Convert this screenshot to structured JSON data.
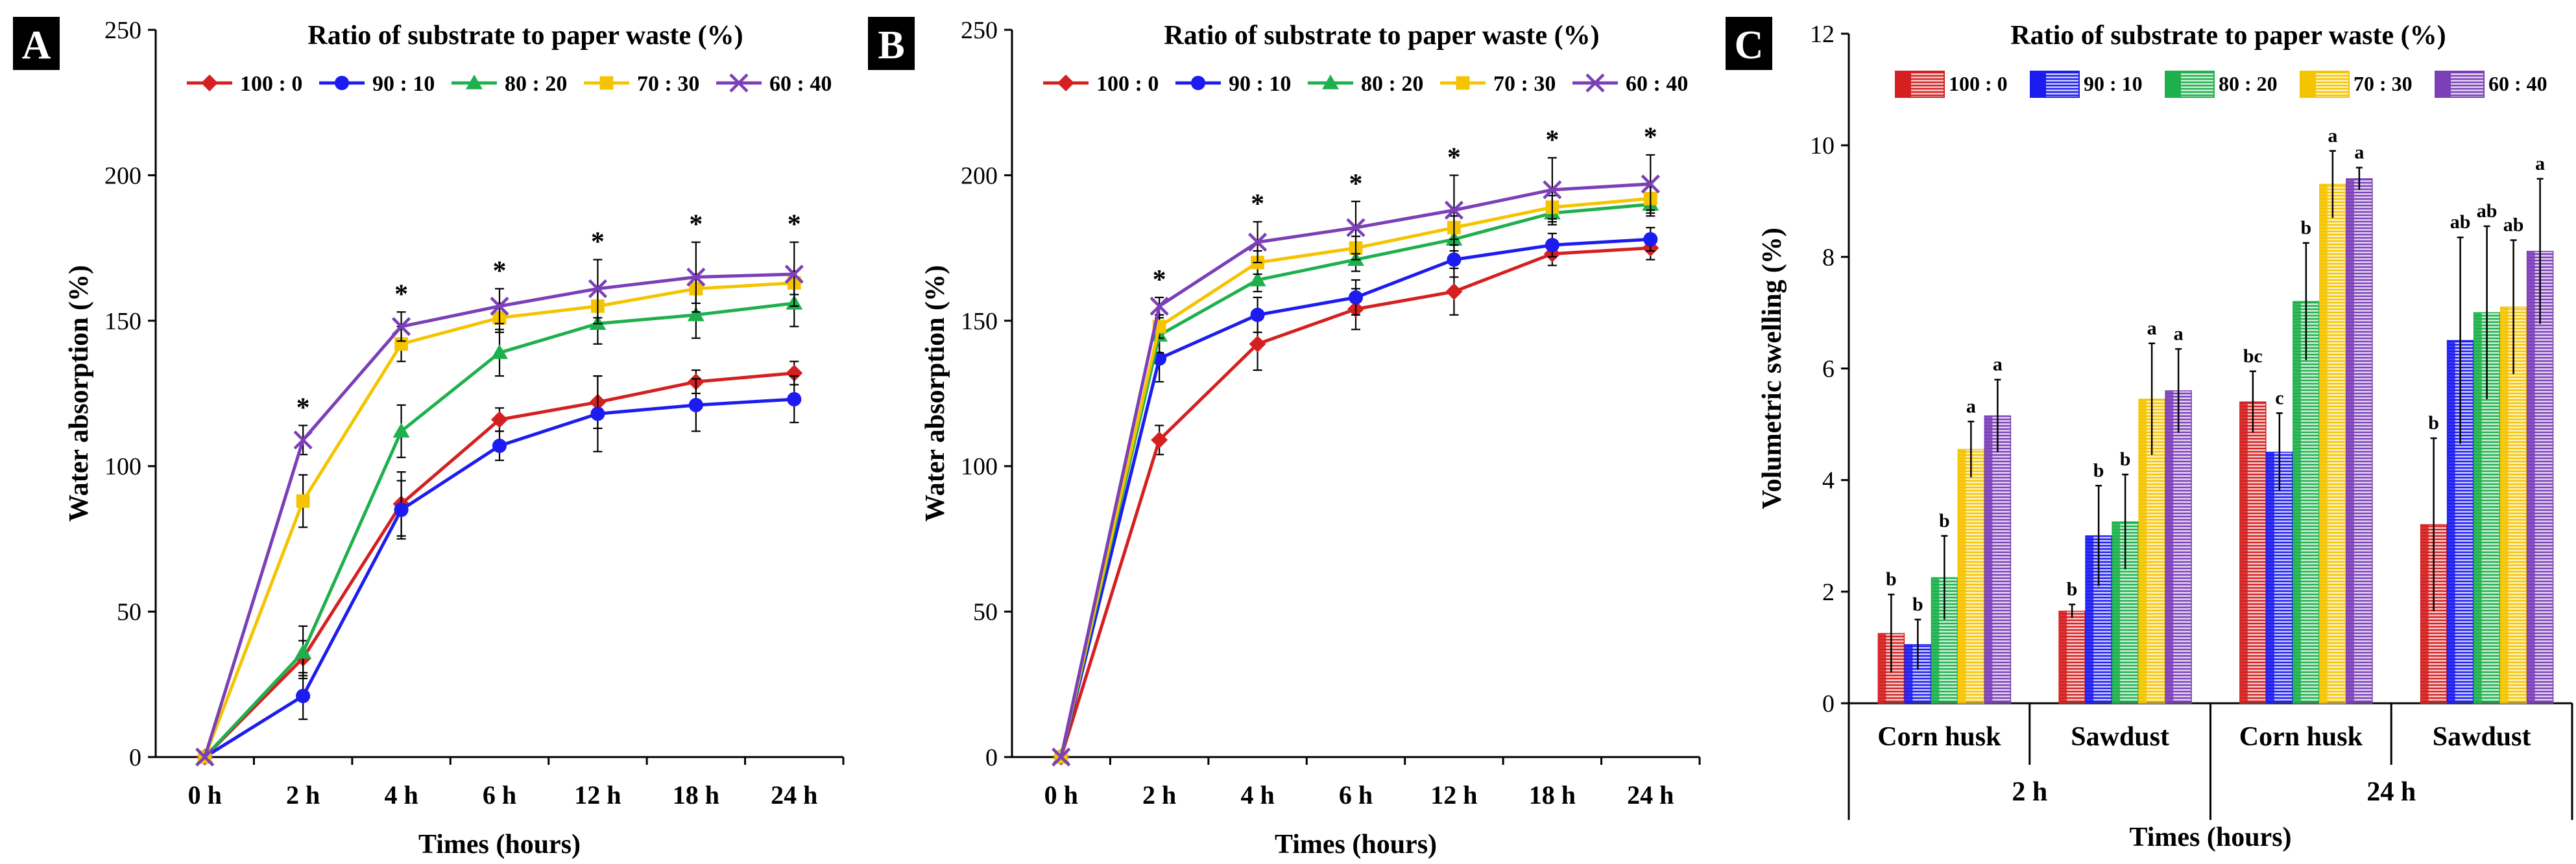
{
  "legend_title": "Ratio of substrate to paper waste (%)",
  "colors": {
    "100 : 0": "#d42020",
    "90 : 10": "#1c1cf0",
    "80 : 20": "#1fb04e",
    "70 : 30": "#f5c400",
    "60 : 40": "#7b3fb8",
    "text": "#000000"
  },
  "chart_data": [
    {
      "panel": "A",
      "type": "line",
      "title": "Ratio of substrate to paper waste (%)",
      "xlabel": "Times (hours)",
      "ylabel": "Water absorption (%)",
      "categories": [
        "0 h",
        "2 h",
        "4 h",
        "6 h",
        "12 h",
        "18 h",
        "24 h"
      ],
      "ylim": [
        0,
        250
      ],
      "yticks": [
        0,
        50,
        100,
        150,
        200,
        250
      ],
      "legend": "top",
      "series": [
        {
          "name": "100 : 0",
          "marker": "diamond",
          "values": [
            0,
            34,
            87,
            116,
            122,
            129,
            132
          ],
          "err": [
            0,
            6,
            11,
            4,
            9,
            4,
            4
          ]
        },
        {
          "name": "90 : 10",
          "marker": "circle",
          "values": [
            0,
            21,
            85,
            107,
            118,
            121,
            123
          ],
          "err": [
            0,
            8,
            10,
            5,
            13,
            9,
            8
          ]
        },
        {
          "name": "80 : 20",
          "marker": "triangle",
          "values": [
            0,
            36,
            112,
            139,
            149,
            152,
            156
          ],
          "err": [
            0,
            9,
            9,
            8,
            7,
            8,
            8
          ]
        },
        {
          "name": "70 : 30",
          "marker": "square",
          "values": [
            0,
            88,
            142,
            151,
            155,
            161,
            163
          ],
          "err": [
            0,
            9,
            6,
            5,
            6,
            5,
            4
          ]
        },
        {
          "name": "60 : 40",
          "marker": "x",
          "values": [
            0,
            109,
            148,
            155,
            161,
            165,
            166
          ],
          "err": [
            0,
            5,
            5,
            6,
            10,
            12,
            11
          ]
        }
      ],
      "significance": [
        "",
        "*",
        "*",
        "*",
        "*",
        "*",
        "*"
      ]
    },
    {
      "panel": "B",
      "type": "line",
      "title": "Ratio of substrate to paper waste (%)",
      "xlabel": "Times (hours)",
      "ylabel": "Water absorption (%)",
      "categories": [
        "0 h",
        "2 h",
        "4 h",
        "6 h",
        "12 h",
        "18 h",
        "24 h"
      ],
      "ylim": [
        0,
        250
      ],
      "yticks": [
        0,
        50,
        100,
        150,
        200,
        250
      ],
      "legend": "top",
      "series": [
        {
          "name": "100 : 0",
          "marker": "diamond",
          "values": [
            0,
            109,
            142,
            154,
            160,
            173,
            175
          ],
          "err": [
            0,
            5,
            9,
            7,
            8,
            4,
            4
          ]
        },
        {
          "name": "90 : 10",
          "marker": "circle",
          "values": [
            0,
            137,
            152,
            158,
            171,
            176,
            178
          ],
          "err": [
            0,
            8,
            6,
            6,
            6,
            4,
            4
          ]
        },
        {
          "name": "80 : 20",
          "marker": "triangle",
          "values": [
            0,
            145,
            164,
            171,
            178,
            187,
            190
          ],
          "err": [
            0,
            6,
            4,
            4,
            4,
            4,
            4
          ]
        },
        {
          "name": "70 : 30",
          "marker": "square",
          "values": [
            0,
            148,
            170,
            175,
            182,
            189,
            192
          ],
          "err": [
            0,
            4,
            4,
            4,
            4,
            4,
            4
          ]
        },
        {
          "name": "60 : 40",
          "marker": "x",
          "values": [
            0,
            155,
            177,
            182,
            188,
            195,
            197
          ],
          "err": [
            0,
            3,
            7,
            9,
            12,
            11,
            10
          ]
        }
      ],
      "significance": [
        "",
        "*",
        "*",
        "*",
        "*",
        "*",
        "*"
      ]
    },
    {
      "panel": "C",
      "type": "bar",
      "title": "Ratio of substrate to paper waste (%)",
      "xlabel": "Times (hours)",
      "ylabel": "Volumetric swelling (%)",
      "ylim": [
        0,
        12
      ],
      "yticks": [
        0,
        2,
        4,
        6,
        8,
        10,
        12
      ],
      "legend": "top",
      "groups": [
        {
          "time": "2 h",
          "material": "Corn husk",
          "values": [
            1.25,
            1.05,
            2.25,
            4.55,
            5.15
          ],
          "err": [
            0.7,
            0.45,
            0.75,
            0.5,
            0.65
          ],
          "letters": [
            "b",
            "b",
            "b",
            "a",
            "a"
          ]
        },
        {
          "time": "2 h",
          "material": "Sawdust",
          "values": [
            1.65,
            3.0,
            3.25,
            5.45,
            5.6
          ],
          "err": [
            0.12,
            0.9,
            0.85,
            1.0,
            0.75
          ],
          "letters": [
            "b",
            "b",
            "b",
            "a",
            "a"
          ]
        },
        {
          "time": "24 h",
          "material": "Corn husk",
          "values": [
            5.4,
            4.5,
            7.2,
            9.3,
            9.4
          ],
          "err": [
            0.55,
            0.7,
            1.05,
            0.6,
            0.2
          ],
          "letters": [
            "bc",
            "c",
            "b",
            "a",
            "a"
          ]
        },
        {
          "time": "24 h",
          "material": "Sawdust",
          "values": [
            3.2,
            6.5,
            7.0,
            7.1,
            8.1
          ],
          "err": [
            1.55,
            1.85,
            1.55,
            1.2,
            1.3
          ],
          "letters": [
            "b",
            "ab",
            "ab",
            "ab",
            "a"
          ]
        }
      ],
      "series_names": [
        "100 : 0",
        "90 : 10",
        "80 : 20",
        "70 : 30",
        "60 : 40"
      ],
      "time_labels": [
        "2 h",
        "24 h"
      ]
    }
  ]
}
